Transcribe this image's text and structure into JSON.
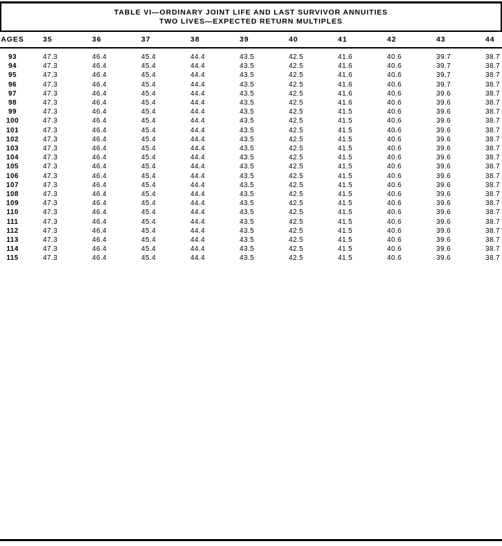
{
  "header": {
    "title_line1": "TABLE VI—ORDINARY JOINT LIFE AND LAST SURVIVOR ANNUITIES",
    "title_line2": "TWO LIVES—EXPECTED RETURN MULTIPLES"
  },
  "table": {
    "age_header": "AGES",
    "columns": [
      "35",
      "36",
      "37",
      "38",
      "39",
      "40",
      "41",
      "42",
      "43",
      "44"
    ],
    "rows": [
      {
        "age": "93",
        "values": [
          "47.3",
          "46.4",
          "45.4",
          "44.4",
          "43.5",
          "42.5",
          "41.6",
          "40.6",
          "39.7",
          "38.7"
        ]
      },
      {
        "age": "94",
        "values": [
          "47.3",
          "46.4",
          "45.4",
          "44.4",
          "43.5",
          "42.5",
          "41.6",
          "40.6",
          "39.7",
          "38.7"
        ]
      },
      {
        "age": "95",
        "values": [
          "47.3",
          "46.4",
          "45.4",
          "44.4",
          "43.5",
          "42.5",
          "41.6",
          "40.6",
          "39.7",
          "38.7"
        ]
      },
      {
        "age": "96",
        "values": [
          "47.3",
          "46.4",
          "45.4",
          "44.4",
          "43.5",
          "42.5",
          "41.6",
          "40.6",
          "39.7",
          "38.7"
        ]
      },
      {
        "age": "97",
        "values": [
          "47.3",
          "46.4",
          "45.4",
          "44.4",
          "43.5",
          "42.5",
          "41.6",
          "40.6",
          "39.6",
          "38.7"
        ]
      },
      {
        "age": "98",
        "values": [
          "47.3",
          "46.4",
          "45.4",
          "44.4",
          "43.5",
          "42.5",
          "41.6",
          "40.6",
          "39.6",
          "38.7"
        ]
      },
      {
        "age": "99",
        "values": [
          "47.3",
          "46.4",
          "45.4",
          "44.4",
          "43.5",
          "42.5",
          "41.5",
          "40.6",
          "39.6",
          "38.7"
        ]
      },
      {
        "age": "100",
        "values": [
          "47.3",
          "46.4",
          "45.4",
          "44.4",
          "43.5",
          "42.5",
          "41.5",
          "40.6",
          "39.6",
          "38.7"
        ]
      },
      {
        "age": "101",
        "values": [
          "47.3",
          "46.4",
          "45.4",
          "44.4",
          "43.5",
          "42.5",
          "41.5",
          "40.6",
          "39.6",
          "38.7"
        ]
      },
      {
        "age": "102",
        "values": [
          "47.3",
          "46.4",
          "45.4",
          "44.4",
          "43.5",
          "42.5",
          "41.5",
          "40.6",
          "39.6",
          "38.7"
        ]
      },
      {
        "age": "103",
        "values": [
          "47.3",
          "46.4",
          "45.4",
          "44.4",
          "43.5",
          "42.5",
          "41.5",
          "40.6",
          "39.6",
          "38.7"
        ]
      },
      {
        "age": "104",
        "values": [
          "47.3",
          "46.4",
          "45.4",
          "44.4",
          "43.5",
          "42.5",
          "41.5",
          "40.6",
          "39.6",
          "38.7"
        ]
      },
      {
        "age": "105",
        "values": [
          "47.3",
          "46.4",
          "45.4",
          "44.4",
          "43.5",
          "42.5",
          "41.5",
          "40.6",
          "39.6",
          "38.7"
        ]
      },
      {
        "age": "106",
        "values": [
          "47.3",
          "46.4",
          "45.4",
          "44.4",
          "43.5",
          "42.5",
          "41.5",
          "40.6",
          "39.6",
          "38.7"
        ]
      },
      {
        "age": "107",
        "values": [
          "47.3",
          "46.4",
          "45.4",
          "44.4",
          "43.5",
          "42.5",
          "41.5",
          "40.6",
          "39.6",
          "38.7"
        ]
      },
      {
        "age": "108",
        "values": [
          "47.3",
          "46.4",
          "45.4",
          "44.4",
          "43.5",
          "42.5",
          "41.5",
          "40.6",
          "39.6",
          "38.7"
        ]
      },
      {
        "age": "109",
        "values": [
          "47.3",
          "46.4",
          "45.4",
          "44.4",
          "43.5",
          "42.5",
          "41.5",
          "40.6",
          "39.6",
          "38.7"
        ]
      },
      {
        "age": "110",
        "values": [
          "47.3",
          "46.4",
          "45.4",
          "44.4",
          "43.5",
          "42.5",
          "41.5",
          "40.6",
          "39.6",
          "38.7"
        ]
      },
      {
        "age": "111",
        "values": [
          "47.3",
          "46.4",
          "45.4",
          "44.4",
          "43.5",
          "42.5",
          "41.5",
          "40.6",
          "39.6",
          "38.7"
        ]
      },
      {
        "age": "112",
        "values": [
          "47.3",
          "46.4",
          "45.4",
          "44.4",
          "43.5",
          "42.5",
          "41.5",
          "40.6",
          "39.6",
          "38.7"
        ]
      },
      {
        "age": "113",
        "values": [
          "47.3",
          "46.4",
          "45.4",
          "44.4",
          "43.5",
          "42.5",
          "41.5",
          "40.6",
          "39.6",
          "38.7"
        ]
      },
      {
        "age": "114",
        "values": [
          "47.3",
          "46.4",
          "45.4",
          "44.4",
          "43.5",
          "42.5",
          "41.5",
          "40.6",
          "39.6",
          "38.7"
        ]
      },
      {
        "age": "115",
        "values": [
          "47.3",
          "46.4",
          "45.4",
          "44.4",
          "43.5",
          "42.5",
          "41.5",
          "40.6",
          "39.6",
          "38.7"
        ]
      }
    ]
  }
}
